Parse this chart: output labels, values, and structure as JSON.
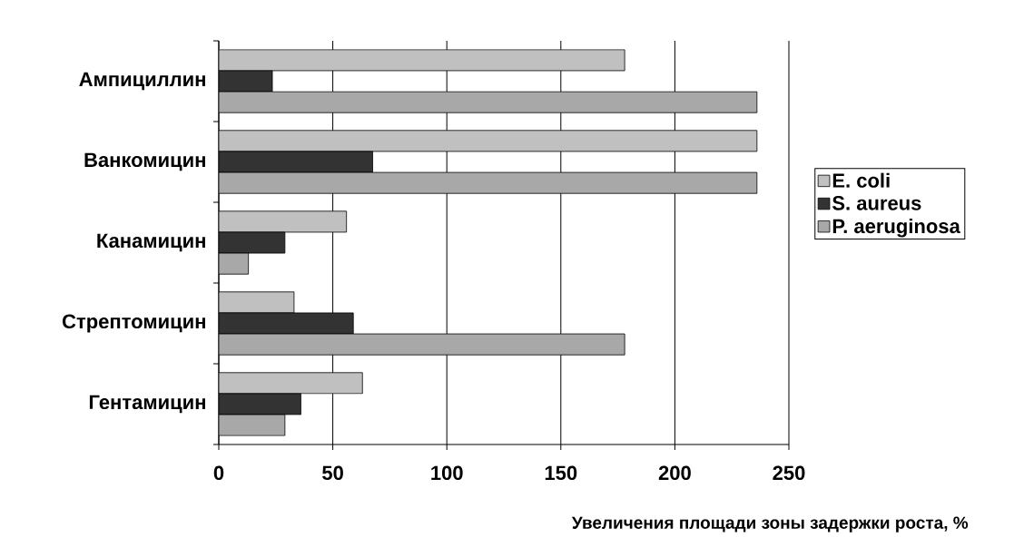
{
  "chart_data": {
    "type": "bar",
    "orientation": "horizontal",
    "xlabel": "Увеличения площади зоны задержки роста, %",
    "categories": [
      "Ампициллин",
      "Ванкомицин",
      "Канамицин",
      "Стрептомицин",
      "Гентамицин"
    ],
    "series": [
      {
        "name": "E. coli",
        "color": "#c0c0c0",
        "values": [
          178,
          236,
          56,
          33,
          63
        ]
      },
      {
        "name": "S. aureus",
        "color": "#333333",
        "values": [
          23.5,
          67.5,
          29,
          59,
          36
        ]
      },
      {
        "name": "P. aeruginosa",
        "color": "#a8a8a8",
        "values": [
          236,
          236,
          13,
          178,
          29
        ]
      }
    ],
    "xlim": [
      0,
      250
    ],
    "xticks": [
      0,
      50,
      100,
      150,
      200,
      250
    ],
    "grid": "x",
    "legend": "right"
  }
}
